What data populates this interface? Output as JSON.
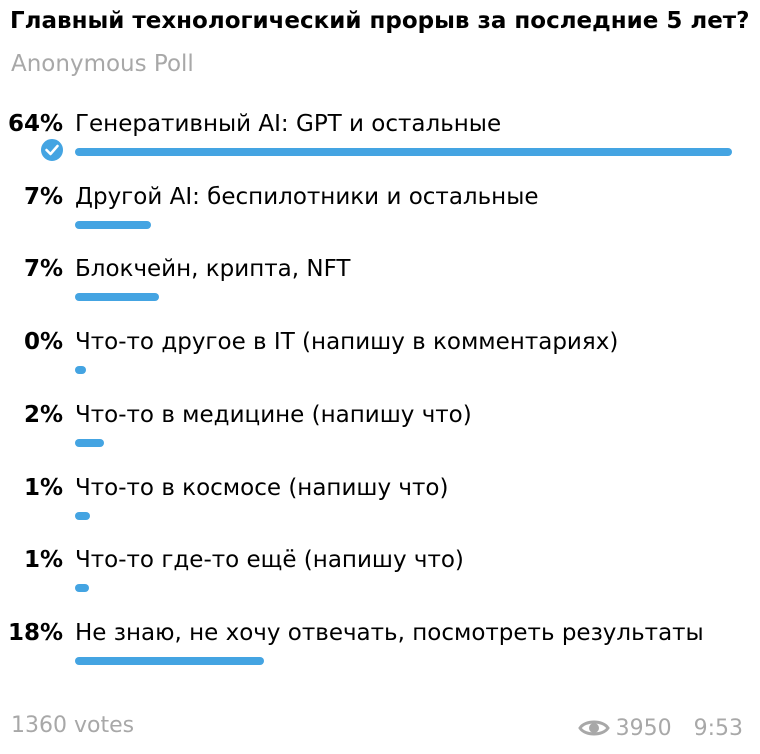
{
  "poll": {
    "question": "Главный технологический прорыв за последние 5 лет?",
    "type": "Anonymous Poll",
    "accent_color": "#44a4e2",
    "options": [
      {
        "percent": "64%",
        "fill": 1.0,
        "label": "Генеративный AI: GPT и остальные",
        "chosen": true,
        "chosen_icon": "check-circle-icon"
      },
      {
        "percent": "7%",
        "fill": 0.115,
        "label": "Другой AI: беспилотники и остальные"
      },
      {
        "percent": "7%",
        "fill": 0.128,
        "label": "Блокчейн, крипта, NFT"
      },
      {
        "percent": "0%",
        "fill": 0.017,
        "label": "Что-то другое в IT (напишу в комментариях)"
      },
      {
        "percent": "2%",
        "fill": 0.044,
        "label": "Что-то в медицине (напишу что)"
      },
      {
        "percent": "1%",
        "fill": 0.023,
        "label": "Что-то в космосе (напишу что)"
      },
      {
        "percent": "1%",
        "fill": 0.021,
        "label": "Что-то где-то ещё (напишу что)"
      },
      {
        "percent": "18%",
        "fill": 0.288,
        "label": "Не знаю, не хочу отвечать, посмотреть результаты"
      }
    ]
  },
  "footer": {
    "votes": "1360 votes",
    "views_icon": "eye-icon",
    "views": "3950",
    "time": "9:53"
  }
}
